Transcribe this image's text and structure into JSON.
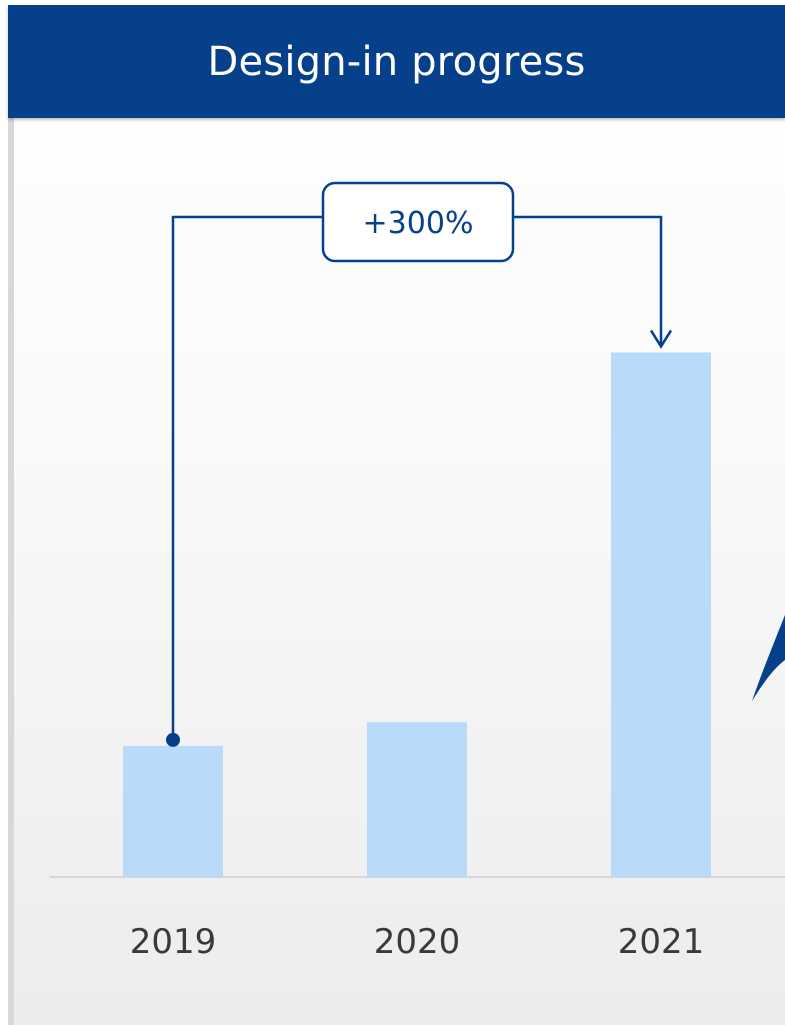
{
  "header": {
    "title": "Design-in progress"
  },
  "colors": {
    "header": "#06408a",
    "bar": "#badafa",
    "accent": "#06408a"
  },
  "chart_data": {
    "type": "bar",
    "categories": [
      "2019",
      "2020",
      "2021"
    ],
    "values": [
      1,
      1.18,
      4
    ],
    "ylim": [
      0,
      4.4
    ],
    "grid": false,
    "annotation": {
      "label": "+300%",
      "from": "2019",
      "to": "2021"
    }
  }
}
